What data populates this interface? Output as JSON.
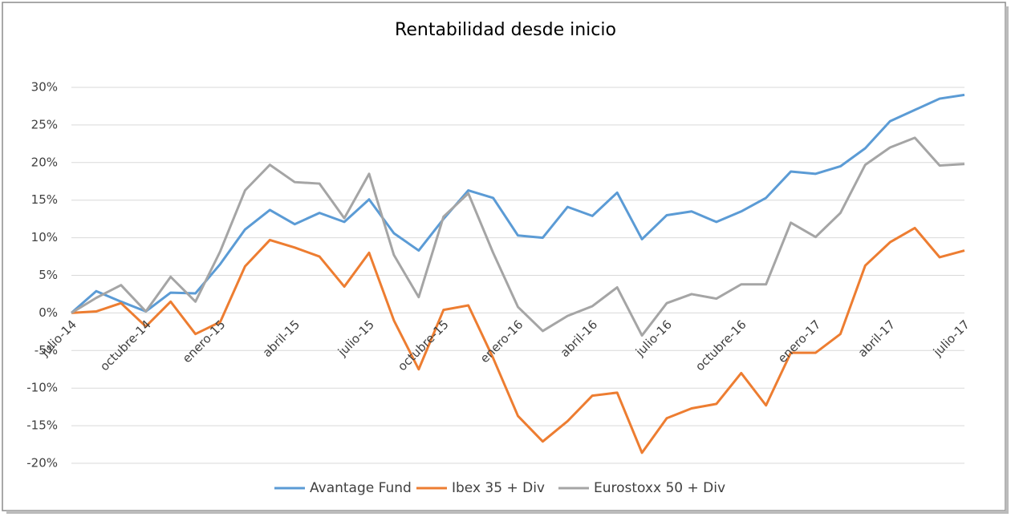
{
  "chart_data": {
    "type": "line",
    "title": "Rentabilidad desde inicio",
    "categories": [
      "julio-14",
      null,
      null,
      "octubre-14",
      null,
      null,
      "enero-15",
      null,
      null,
      "abril-15",
      null,
      null,
      "julio-15",
      null,
      null,
      "octubre-15",
      null,
      null,
      "enero-16",
      null,
      null,
      "abril-16",
      null,
      null,
      "julio-16",
      null,
      null,
      "octubre-16",
      null,
      null,
      "enero-17",
      null,
      null,
      "abril-17",
      null,
      null,
      "julio-17"
    ],
    "series": [
      {
        "name": "Avantage Fund",
        "color": "#5b9bd5",
        "values": [
          0,
          2.9,
          1.5,
          0.2,
          2.7,
          2.6,
          6.5,
          11.1,
          13.7,
          11.8,
          13.3,
          12.1,
          15.1,
          10.6,
          8.3,
          12.5,
          16.3,
          15.3,
          10.3,
          10.0,
          14.1,
          12.9,
          16.0,
          9.8,
          13.0,
          13.5,
          12.1,
          13.5,
          15.3,
          18.8,
          18.5,
          19.5,
          21.9,
          25.5,
          27.0,
          28.5,
          29.0
        ]
      },
      {
        "name": "Ibex 35 + Div",
        "color": "#ed7d31",
        "values": [
          0,
          0.2,
          1.3,
          -1.8,
          1.5,
          -2.8,
          -1.2,
          6.2,
          9.7,
          8.7,
          7.5,
          3.5,
          8.0,
          -1.0,
          -7.5,
          0.4,
          1.0,
          -6.0,
          -13.7,
          -17.1,
          -14.4,
          -11.0,
          -10.6,
          -18.6,
          -14.0,
          -12.7,
          -12.1,
          -8.0,
          -12.3,
          -5.3,
          -5.3,
          -2.8,
          6.3,
          9.4,
          11.3,
          7.4,
          8.3
        ]
      },
      {
        "name": "Eurostoxx 50 + Div",
        "color": "#a5a5a5",
        "values": [
          0,
          2.0,
          3.7,
          0.2,
          4.8,
          1.5,
          8.2,
          16.3,
          19.7,
          17.4,
          17.2,
          12.6,
          18.5,
          7.7,
          2.1,
          12.8,
          15.9,
          8.0,
          0.8,
          -2.4,
          -0.4,
          0.9,
          3.4,
          -3.0,
          1.3,
          2.5,
          1.9,
          3.8,
          3.8,
          12.0,
          10.1,
          13.3,
          19.7,
          22.0,
          23.3,
          19.6,
          19.8
        ]
      }
    ],
    "ylim": [
      -20,
      30
    ],
    "yticks": [
      {
        "value": -20,
        "label": "-20%"
      },
      {
        "value": -15,
        "label": "-15%"
      },
      {
        "value": -10,
        "label": "-10%"
      },
      {
        "value": -5,
        "label": "-5%"
      },
      {
        "value": 0,
        "label": "0%"
      },
      {
        "value": 5,
        "label": "5%"
      },
      {
        "value": 10,
        "label": "10%"
      },
      {
        "value": 15,
        "label": "15%"
      },
      {
        "value": 20,
        "label": "20%"
      },
      {
        "value": 25,
        "label": "25%"
      },
      {
        "value": 30,
        "label": "30%"
      }
    ],
    "grid": true,
    "legend": "bottom"
  }
}
